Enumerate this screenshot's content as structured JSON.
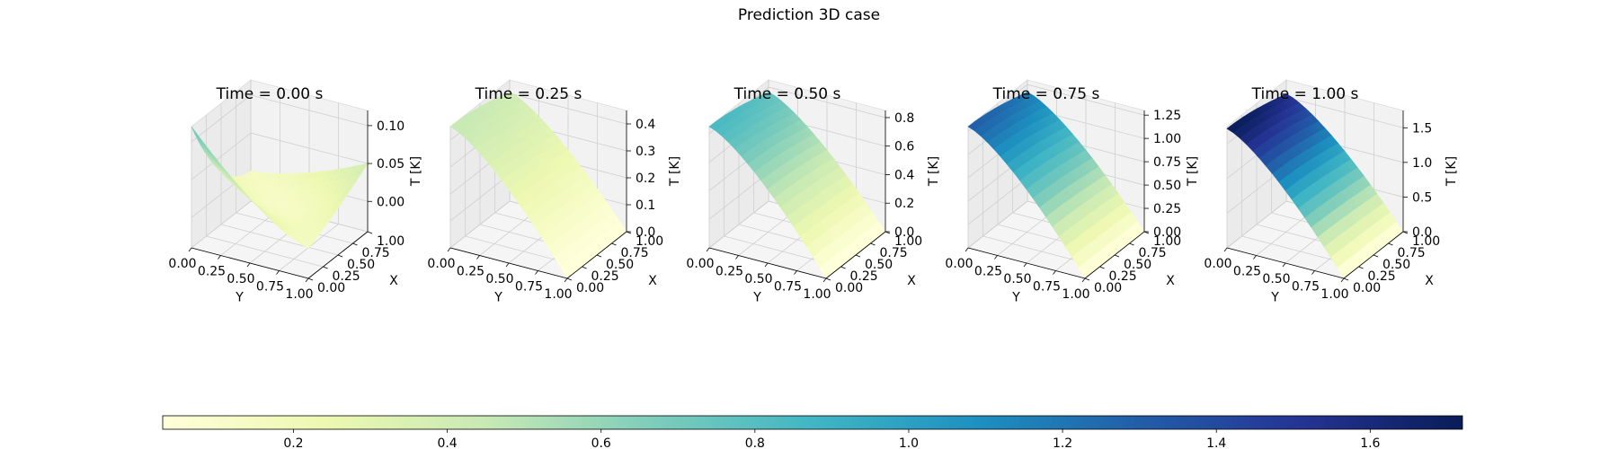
{
  "figure": {
    "title": "Prediction 3D case"
  },
  "chart_data": [
    {
      "type": "surface",
      "title": "Time = 0.00 s",
      "xlabel": "Y",
      "ylabel": "X",
      "zlabel": "T [K]",
      "x_ticks": [
        "0.00",
        "0.25",
        "0.50",
        "0.75",
        "1.00"
      ],
      "y_ticks": [
        "0.00",
        "0.25",
        "0.50",
        "0.75",
        "1.00"
      ],
      "z_ticks": [
        "0.00",
        "0.05",
        "0.10"
      ],
      "zlim": [
        -0.04,
        0.12
      ],
      "zmax": 0.12,
      "colormap": "YlGnBu"
    },
    {
      "type": "surface",
      "title": "Time = 0.25 s",
      "xlabel": "Y",
      "ylabel": "X",
      "zlabel": "T [K]",
      "x_ticks": [
        "0.00",
        "0.25",
        "0.50",
        "0.75",
        "1.00"
      ],
      "y_ticks": [
        "0.00",
        "0.25",
        "0.50",
        "0.75",
        "1.00"
      ],
      "z_ticks": [
        "0.0",
        "0.1",
        "0.2",
        "0.3",
        "0.4"
      ],
      "zlim": [
        0,
        0.45
      ],
      "zmax": 0.45,
      "colormap": "YlGnBu"
    },
    {
      "type": "surface",
      "title": "Time = 0.50 s",
      "xlabel": "Y",
      "ylabel": "X",
      "zlabel": "T [K]",
      "x_ticks": [
        "0.00",
        "0.25",
        "0.50",
        "0.75",
        "1.00"
      ],
      "y_ticks": [
        "0.00",
        "0.25",
        "0.50",
        "0.75",
        "1.00"
      ],
      "z_ticks": [
        "0.0",
        "0.2",
        "0.4",
        "0.6",
        "0.8"
      ],
      "zlim": [
        0,
        0.85
      ],
      "zmax": 0.85,
      "colormap": "YlGnBu"
    },
    {
      "type": "surface",
      "title": "Time = 0.75 s",
      "xlabel": "Y",
      "ylabel": "X",
      "zlabel": "T [K]",
      "x_ticks": [
        "0.00",
        "0.25",
        "0.50",
        "0.75",
        "1.00"
      ],
      "y_ticks": [
        "0.00",
        "0.25",
        "0.50",
        "0.75",
        "1.00"
      ],
      "z_ticks": [
        "0.00",
        "0.25",
        "0.50",
        "0.75",
        "1.00",
        "1.25"
      ],
      "zlim": [
        0,
        1.3
      ],
      "zmax": 1.3,
      "colormap": "YlGnBu"
    },
    {
      "type": "surface",
      "title": "Time = 1.00 s",
      "xlabel": "Y",
      "ylabel": "X",
      "zlabel": "T [K]",
      "x_ticks": [
        "0.00",
        "0.25",
        "0.50",
        "0.75",
        "1.00"
      ],
      "y_ticks": [
        "0.00",
        "0.25",
        "0.50",
        "0.75",
        "1.00"
      ],
      "z_ticks": [
        "0.0",
        "0.5",
        "1.0",
        "1.5"
      ],
      "zlim": [
        0,
        1.75
      ],
      "zmax": 1.72,
      "colormap": "YlGnBu"
    }
  ],
  "colorbar": {
    "ticks": [
      "0.2",
      "0.4",
      "0.6",
      "0.8",
      "1.0",
      "1.2",
      "1.4",
      "1.6"
    ],
    "range": [
      0.03,
      1.72
    ],
    "colors": [
      "#ffffd9",
      "#edf8b1",
      "#c7e9b4",
      "#7fcdbb",
      "#41b6c4",
      "#1d91c0",
      "#225ea8",
      "#253494",
      "#081d58"
    ]
  }
}
